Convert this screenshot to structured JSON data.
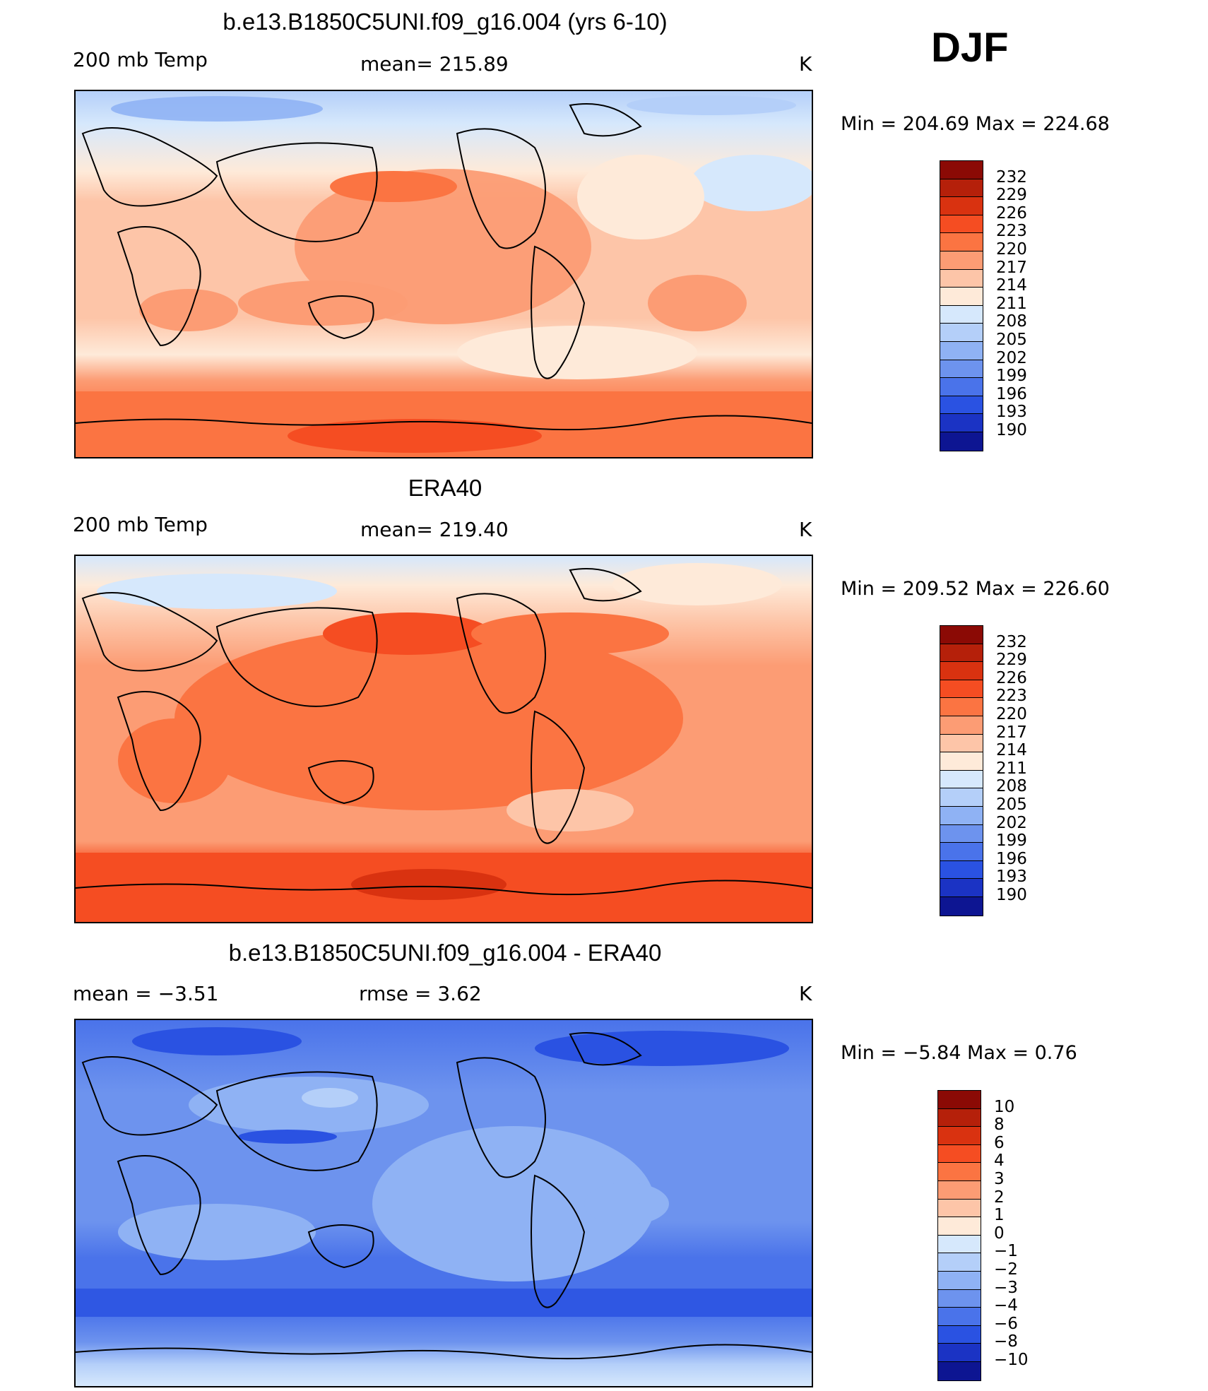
{
  "season": "DJF",
  "panels": [
    {
      "title": "b.e13.B1850C5UNI.f09_g16.004 (yrs 6-10)",
      "left_label": "200 mb Temp",
      "center_label": "mean=  215.89",
      "units": "K",
      "min_max": "Min  =  204.69  Max  =  224.68",
      "colorbar_labels": [
        "232",
        "229",
        "226",
        "223",
        "220",
        "217",
        "214",
        "211",
        "208",
        "205",
        "202",
        "199",
        "196",
        "193",
        "190"
      ]
    },
    {
      "title": "ERA40",
      "left_label": "200 mb Temp",
      "center_label": "mean=  219.40",
      "units": "K",
      "min_max": "Min  =  209.52  Max  =  226.60",
      "colorbar_labels": [
        "232",
        "229",
        "226",
        "223",
        "220",
        "217",
        "214",
        "211",
        "208",
        "205",
        "202",
        "199",
        "196",
        "193",
        "190"
      ]
    },
    {
      "title": "b.e13.B1850C5UNI.f09_g16.004 - ERA40",
      "left_label": "mean =    −3.51",
      "center_label": "rmse =     3.62",
      "units": "K",
      "min_max": "Min  =    −5.84  Max  =     0.76",
      "colorbar_labels": [
        "10",
        "8",
        "6",
        "4",
        "3",
        "2",
        "1",
        "0",
        "−1",
        "−2",
        "−3",
        "−4",
        "−6",
        "−8",
        "−10"
      ]
    }
  ],
  "colors": {
    "temp_scale": [
      "#8b0a05",
      "#b5200a",
      "#d93210",
      "#f54d22",
      "#fb7442",
      "#fc9c74",
      "#fdc5a8",
      "#feead9",
      "#d6e8fc",
      "#b4cff9",
      "#8fb2f4",
      "#6d93ee",
      "#4a73ea",
      "#2a52e2",
      "#1b33c4",
      "#0d1592",
      "#000a78"
    ],
    "diff_scale": [
      "#8b0a05",
      "#b5200a",
      "#d93210",
      "#f54d22",
      "#fb7442",
      "#fc9c74",
      "#fdc5a8",
      "#feead9",
      "#d6e8fc",
      "#b4cff9",
      "#8fb2f4",
      "#6d93ee",
      "#4a73ea",
      "#2a52e2",
      "#1b33c4",
      "#0d1592",
      "#000a78"
    ]
  },
  "chart_data": [
    {
      "type": "heatmap",
      "title": "b.e13.B1850C5UNI.f09_g16.004 (yrs 6-10)",
      "variable": "200 mb Temp",
      "units": "K",
      "mean": 215.89,
      "min": 204.69,
      "max": 224.68,
      "contour_levels": [
        190,
        193,
        196,
        199,
        202,
        205,
        208,
        211,
        214,
        217,
        220,
        223,
        226,
        229,
        232
      ]
    },
    {
      "type": "heatmap",
      "title": "ERA40",
      "variable": "200 mb Temp",
      "units": "K",
      "mean": 219.4,
      "min": 209.52,
      "max": 226.6,
      "contour_levels": [
        190,
        193,
        196,
        199,
        202,
        205,
        208,
        211,
        214,
        217,
        220,
        223,
        226,
        229,
        232
      ]
    },
    {
      "type": "heatmap",
      "title": "b.e13.B1850C5UNI.f09_g16.004 - ERA40",
      "units": "K",
      "mean": -3.51,
      "rmse": 3.62,
      "min": -5.84,
      "max": 0.76,
      "contour_levels": [
        -10,
        -8,
        -6,
        -4,
        -3,
        -2,
        -1,
        0,
        1,
        2,
        3,
        4,
        6,
        8,
        10
      ]
    }
  ]
}
